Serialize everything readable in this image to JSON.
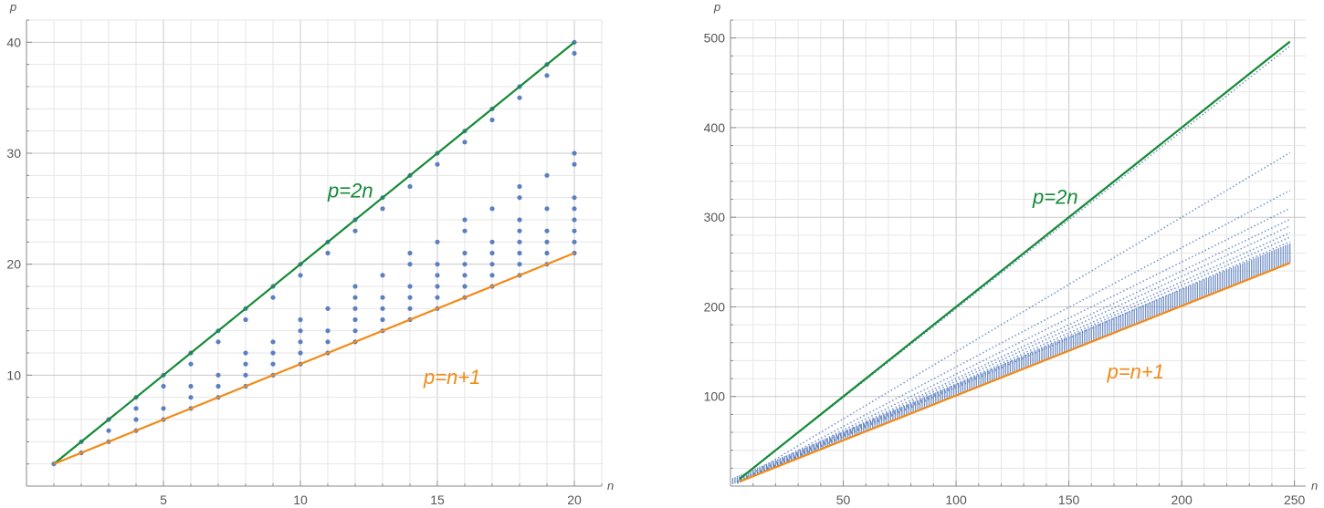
{
  "chart_data": [
    {
      "type": "scatter",
      "xlabel": "n",
      "ylabel": "p",
      "xlim": [
        0,
        21
      ],
      "ylim": [
        0,
        42
      ],
      "x_ticks": [
        5,
        10,
        15,
        20
      ],
      "y_ticks": [
        10,
        20,
        30,
        40
      ],
      "x_minor_step": 1,
      "y_minor_step": 2,
      "grid": true,
      "point_color": "#5b7fbf",
      "points_by_n": {
        "1": [
          2
        ],
        "2": [
          3,
          4
        ],
        "3": [
          4,
          5,
          6
        ],
        "4": [
          5,
          6,
          7,
          8
        ],
        "5": [
          6,
          7,
          9,
          10
        ],
        "6": [
          7,
          8,
          9,
          11,
          12
        ],
        "7": [
          8,
          9,
          10,
          13,
          14
        ],
        "8": [
          9,
          10,
          11,
          12,
          15,
          16
        ],
        "9": [
          10,
          11,
          12,
          13,
          17,
          18
        ],
        "10": [
          11,
          12,
          13,
          14,
          15,
          19,
          20
        ],
        "11": [
          12,
          13,
          14,
          16,
          21,
          22
        ],
        "12": [
          13,
          14,
          15,
          16,
          17,
          18,
          23,
          24
        ],
        "13": [
          14,
          15,
          16,
          17,
          19,
          25,
          26
        ],
        "14": [
          15,
          16,
          17,
          18,
          20,
          21,
          27,
          28
        ],
        "15": [
          16,
          17,
          18,
          19,
          20,
          22,
          29,
          30
        ],
        "16": [
          17,
          18,
          19,
          20,
          21,
          23,
          24,
          31,
          32
        ],
        "17": [
          18,
          19,
          20,
          21,
          22,
          25,
          33,
          34
        ],
        "18": [
          19,
          20,
          21,
          22,
          23,
          24,
          26,
          27,
          35,
          36
        ],
        "19": [
          20,
          21,
          22,
          23,
          25,
          28,
          37,
          38
        ],
        "20": [
          21,
          22,
          23,
          24,
          25,
          26,
          29,
          30,
          39,
          40
        ]
      },
      "lines": [
        {
          "label": "p=2n",
          "color": "#138a36",
          "slope": 2,
          "intercept": 0,
          "x_range": [
            1,
            20
          ],
          "label_at": [
            11.0,
            26.0
          ]
        },
        {
          "label": "p=n+1",
          "color": "#f28a17",
          "slope": 1,
          "intercept": 1,
          "x_range": [
            1,
            20
          ],
          "label_at": [
            14.5,
            9.2
          ]
        }
      ]
    },
    {
      "type": "scatter",
      "xlabel": "n",
      "ylabel": "p",
      "xlim": [
        0,
        255
      ],
      "ylim": [
        0,
        520
      ],
      "x_ticks": [
        50,
        100,
        150,
        200,
        250
      ],
      "y_ticks": [
        100,
        200,
        300,
        400,
        500
      ],
      "x_minor_step": 10,
      "y_minor_step": 20,
      "grid": true,
      "point_color": "#5b7fbf",
      "dense_band": {
        "x_range": [
          1,
          248
        ],
        "lower_slope": 1,
        "lower_intercept": 1,
        "upper_slope": 1.06,
        "upper_intercept": 8
      },
      "rays": [
        {
          "slope": 1.98,
          "x_end": 248
        },
        {
          "slope": 1.5,
          "x_end": 248
        },
        {
          "slope": 1.33,
          "x_end": 248
        },
        {
          "slope": 1.25,
          "x_end": 248
        },
        {
          "slope": 1.2,
          "x_end": 248
        },
        {
          "slope": 1.17,
          "x_end": 248
        },
        {
          "slope": 1.14,
          "x_end": 248
        },
        {
          "slope": 1.12,
          "x_end": 248
        },
        {
          "slope": 1.1,
          "x_end": 248
        }
      ],
      "lines": [
        {
          "label": "p=2n",
          "color": "#138a36",
          "slope": 2,
          "intercept": 0,
          "x_range": [
            4,
            248
          ],
          "label_at": [
            134,
            315
          ]
        },
        {
          "label": "p=n+1",
          "color": "#f28a17",
          "slope": 1,
          "intercept": 1,
          "x_range": [
            4,
            248
          ],
          "label_at": [
            167,
            120
          ]
        }
      ]
    }
  ]
}
